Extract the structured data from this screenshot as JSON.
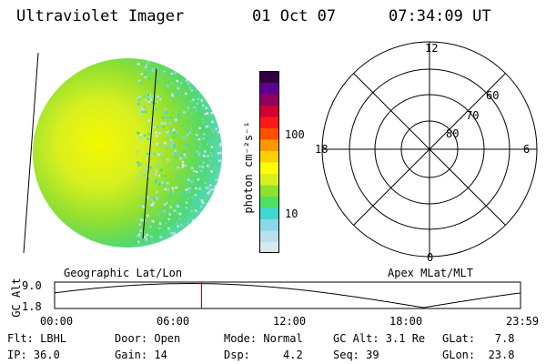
{
  "header": {
    "title": "Ultraviolet Imager",
    "date": "01 Oct 07",
    "time": "07:34:09 UT"
  },
  "colorbar": {
    "unit_label": "photon cm⁻²s⁻¹",
    "tick_high": "100",
    "tick_low": "10",
    "colors": [
      "#d8e8f0",
      "#b8e0ec",
      "#8ad8e8",
      "#40d8d0",
      "#50e060",
      "#90e030",
      "#d8f020",
      "#ffff00",
      "#ffd000",
      "#ff9800",
      "#ff5000",
      "#ff1818",
      "#d00030",
      "#900060",
      "#600090",
      "#300040"
    ]
  },
  "polar": {
    "labels": {
      "top": "12",
      "bottom": "0",
      "left": "18",
      "right": "6"
    },
    "ring_labels": [
      "60",
      "70",
      "80"
    ]
  },
  "timeline": {
    "axis_title": "GC Alt",
    "y_max": "9.0",
    "y_min": "1.8",
    "left_label": "Geographic Lat/Lon",
    "right_label": "Apex MLat/MLT",
    "x_ticks": [
      "00:00",
      "06:00",
      "12:00",
      "18:00",
      "23:59"
    ],
    "current_time_hours": 7.57
  },
  "footer": {
    "col1": [
      "Flt: LBHL",
      "IP: 36.0"
    ],
    "col2": [
      "Door: Open",
      "Gain: 14"
    ],
    "col3": [
      "Mode: Normal",
      "Dsp:     4.2"
    ],
    "col4": [
      "GC Alt: 3.1 Re",
      "Seq: 39"
    ],
    "col5": [
      "GLat:   7.8",
      "GLon:  23.8"
    ]
  }
}
